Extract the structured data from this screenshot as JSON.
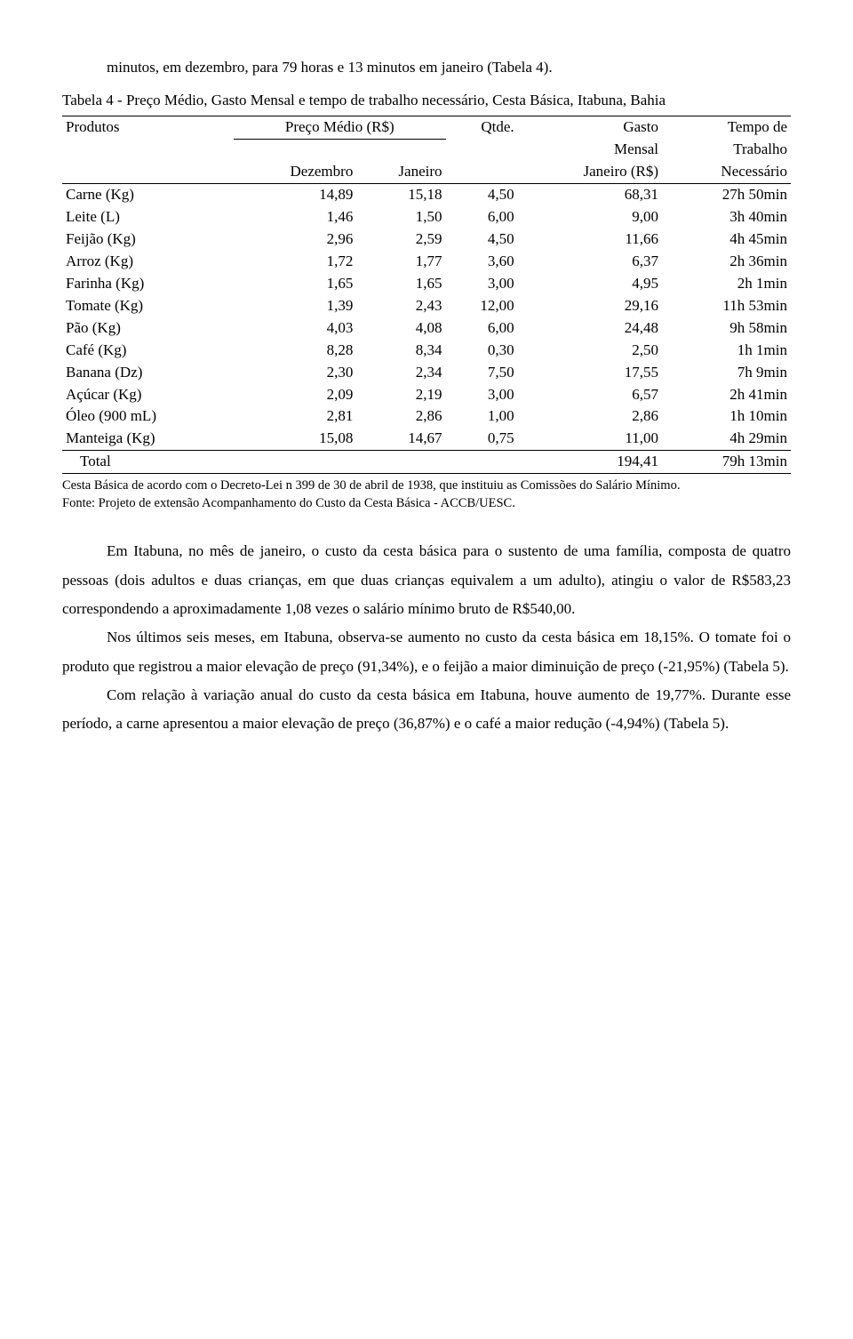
{
  "intro": "minutos, em dezembro, para 79 horas e 13 minutos em janeiro (Tabela 4).",
  "table_caption": "Tabela 4 - Preço Médio, Gasto Mensal e tempo de trabalho necessário, Cesta Básica, Itabuna, Bahia",
  "header": {
    "produtos": "Produtos",
    "preco_medio": "Preço Médio (R$)",
    "qtde": "Qtde.",
    "gasto_mensal_1": "Gasto",
    "gasto_mensal_2": "Mensal",
    "gasto_mensal_3": "Janeiro (R$)",
    "tempo_1": "Tempo de",
    "tempo_2": "Trabalho",
    "tempo_3": "Necessário",
    "dezembro": "Dezembro",
    "janeiro": "Janeiro"
  },
  "rows": [
    {
      "p": "Carne (Kg)",
      "d": "14,89",
      "j": "15,18",
      "q": "4,50",
      "g": "68,31",
      "t": "27h 50min"
    },
    {
      "p": "Leite (L)",
      "d": "1,46",
      "j": "1,50",
      "q": "6,00",
      "g": "9,00",
      "t": "3h 40min"
    },
    {
      "p": "Feijão (Kg)",
      "d": "2,96",
      "j": "2,59",
      "q": "4,50",
      "g": "11,66",
      "t": "4h 45min"
    },
    {
      "p": "Arroz (Kg)",
      "d": "1,72",
      "j": "1,77",
      "q": "3,60",
      "g": "6,37",
      "t": "2h 36min"
    },
    {
      "p": "Farinha (Kg)",
      "d": "1,65",
      "j": "1,65",
      "q": "3,00",
      "g": "4,95",
      "t": "2h 1min"
    },
    {
      "p": "Tomate (Kg)",
      "d": "1,39",
      "j": "2,43",
      "q": "12,00",
      "g": "29,16",
      "t": "11h 53min"
    },
    {
      "p": "Pão (Kg)",
      "d": "4,03",
      "j": "4,08",
      "q": "6,00",
      "g": "24,48",
      "t": "9h 58min"
    },
    {
      "p": "Café (Kg)",
      "d": "8,28",
      "j": "8,34",
      "q": "0,30",
      "g": "2,50",
      "t": "1h 1min"
    },
    {
      "p": "Banana (Dz)",
      "d": "2,30",
      "j": "2,34",
      "q": "7,50",
      "g": "17,55",
      "t": "7h 9min"
    },
    {
      "p": "Açúcar (Kg)",
      "d": "2,09",
      "j": "2,19",
      "q": "3,00",
      "g": "6,57",
      "t": "2h 41min"
    },
    {
      "p": "Óleo (900 mL)",
      "d": "2,81",
      "j": "2,86",
      "q": "1,00",
      "g": "2,86",
      "t": "1h 10min"
    },
    {
      "p": "Manteiga (Kg)",
      "d": "15,08",
      "j": "14,67",
      "q": "0,75",
      "g": "11,00",
      "t": "4h 29min"
    }
  ],
  "total": {
    "label": "Total",
    "g": "194,41",
    "t": "79h 13min"
  },
  "footnote1": "Cesta Básica de acordo com o Decreto-Lei n 399 de 30 de abril de 1938, que instituiu as Comissões do Salário Mínimo.",
  "footnote2": "Fonte: Projeto de extensão Acompanhamento do Custo da Cesta Básica - ACCB/UESC.",
  "body": [
    "Em Itabuna, no mês de janeiro, o custo da cesta básica para o sustento de uma família, composta de quatro pessoas (dois adultos e duas crianças, em que duas crianças equivalem a um adulto), atingiu o valor de R$583,23 correspondendo a aproximadamente 1,08 vezes o salário mínimo bruto de R$540,00.",
    "Nos últimos seis meses, em Itabuna, observa-se aumento no custo da cesta básica em 18,15%. O tomate foi o produto que registrou a maior elevação de preço (91,34%), e o feijão a maior diminuição de preço (-21,95%) (Tabela 5).",
    "Com relação à variação anual do custo da cesta básica em Itabuna, houve aumento de 19,77%. Durante esse período, a carne apresentou a maior elevação de preço (36,87%) e o café a maior redução (-4,94%) (Tabela 5)."
  ]
}
